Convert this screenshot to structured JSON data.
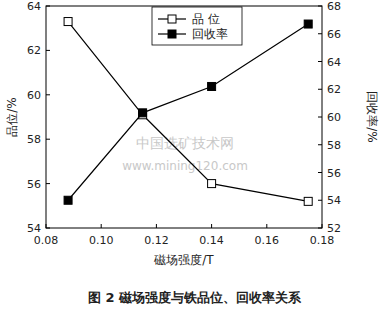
{
  "chart_data": {
    "type": "line",
    "title": "图 2   磁场强度与铁品位、回收率关系",
    "x_label": "磁场强度/T",
    "y_label": "品位/%",
    "y2_label": "回收率/%",
    "annotations": [
      "中国选矿技术网",
      "www.mining120.com"
    ],
    "x": [
      0.088,
      0.115,
      0.14,
      0.175
    ],
    "xlim": [
      0.08,
      0.18
    ],
    "xticks": [
      0.08,
      {
        "value": 0.1,
        "label": "0.10"
      },
      0.12,
      0.14,
      0.16,
      0.18
    ],
    "ylim": [
      54,
      64
    ],
    "yticks": [
      54,
      56,
      58,
      60,
      62,
      64
    ],
    "y2lim": [
      52,
      68
    ],
    "y2ticks": [
      52,
      54,
      56,
      58,
      60,
      62,
      64,
      66,
      68
    ],
    "legend": "upper center",
    "series": [
      {
        "name": "品 位",
        "color": "#000000",
        "marker": "open-square",
        "values": [
          63.3,
          59.1,
          56.0,
          55.2
        ]
      },
      {
        "name": "回收率",
        "color": "#000000",
        "marker": "square",
        "axis": "y2",
        "values": [
          54.0,
          60.3,
          62.2,
          66.7
        ]
      }
    ]
  }
}
